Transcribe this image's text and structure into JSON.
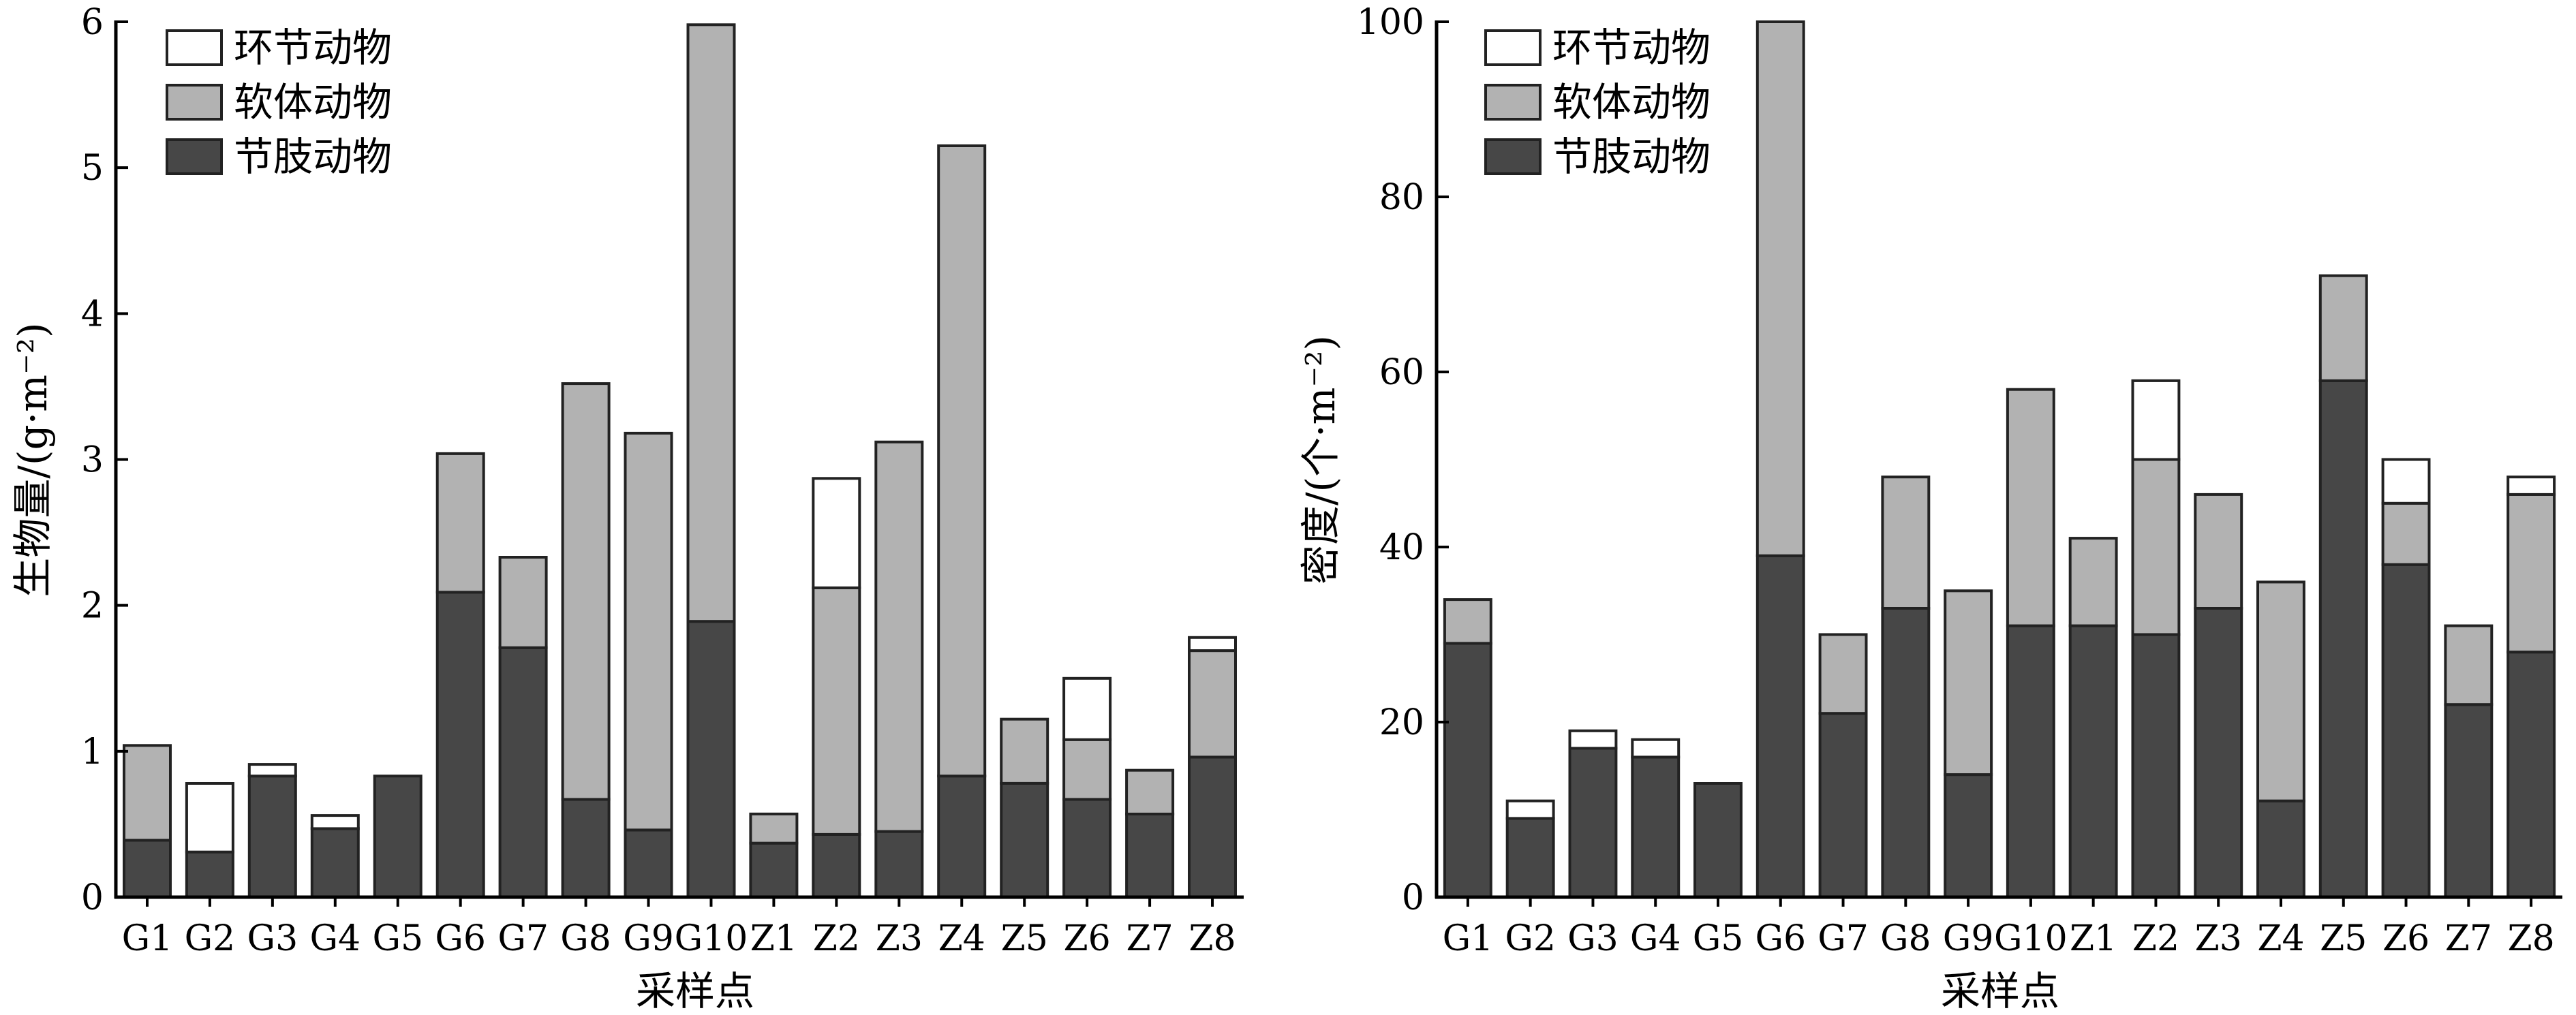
{
  "colors": {
    "annelida": "#ffffff",
    "mollusca": "#b2b2b2",
    "arthropoda": "#474747",
    "stroke": "#222222",
    "axis": "#000000"
  },
  "chart_data": [
    {
      "type": "bar",
      "stacked": true,
      "categories": [
        "G1",
        "G2",
        "G3",
        "G4",
        "G5",
        "G6",
        "G7",
        "G8",
        "G9",
        "G10",
        "Z1",
        "Z2",
        "Z3",
        "Z4",
        "Z5",
        "Z6",
        "Z7",
        "Z8"
      ],
      "series": [
        {
          "name": "节肢动物",
          "color_key": "arthropoda",
          "values": [
            0.39,
            0.31,
            0.83,
            0.47,
            0.83,
            2.09,
            1.71,
            0.67,
            0.46,
            1.89,
            0.37,
            0.43,
            0.45,
            0.83,
            0.78,
            0.67,
            0.57,
            0.96
          ]
        },
        {
          "name": "软体动物",
          "color_key": "mollusca",
          "values": [
            0.65,
            0,
            0,
            0,
            0,
            0.95,
            0.62,
            2.85,
            2.72,
            4.09,
            0.2,
            1.69,
            2.67,
            4.32,
            0.44,
            0.41,
            0.3,
            0.73
          ]
        },
        {
          "name": "环节动物",
          "color_key": "annelida",
          "values": [
            0,
            0.47,
            0.08,
            0.09,
            0,
            0,
            0,
            0,
            0,
            0,
            0,
            0.75,
            0,
            0,
            0,
            0.42,
            0,
            0.09
          ]
        }
      ],
      "legend_order": [
        "环节动物",
        "软体动物",
        "节肢动物"
      ],
      "legend_position": "top-left",
      "xlabel": "采样点",
      "ylabel": "生物量/(g·m⁻²)",
      "ylim": [
        0,
        6
      ],
      "yticks": [
        "0",
        "1",
        "2",
        "3",
        "4",
        "5",
        "6"
      ],
      "grid": false
    },
    {
      "type": "bar",
      "stacked": true,
      "categories": [
        "G1",
        "G2",
        "G3",
        "G4",
        "G5",
        "G6",
        "G7",
        "G8",
        "G9",
        "G10",
        "Z1",
        "Z2",
        "Z3",
        "Z4",
        "Z5",
        "Z6",
        "Z7",
        "Z8"
      ],
      "series": [
        {
          "name": "节肢动物",
          "color_key": "arthropoda",
          "values": [
            29,
            9,
            17,
            16,
            13,
            39,
            21,
            33,
            14,
            31,
            31,
            30,
            33,
            11,
            59,
            38,
            22,
            28
          ]
        },
        {
          "name": "软体动物",
          "color_key": "mollusca",
          "values": [
            5,
            0,
            0,
            0,
            0,
            61,
            9,
            15,
            21,
            27,
            10,
            20,
            13,
            25,
            12,
            7,
            9,
            18
          ]
        },
        {
          "name": "环节动物",
          "color_key": "annelida",
          "values": [
            0,
            2,
            2,
            2,
            0,
            0,
            0,
            0,
            0,
            0,
            0,
            9,
            0,
            0,
            0,
            5,
            0,
            2
          ]
        }
      ],
      "legend_order": [
        "环节动物",
        "软体动物",
        "节肢动物"
      ],
      "legend_position": "top-left",
      "xlabel": "采样点",
      "ylabel": "密度/(个·m⁻²)",
      "ylim": [
        0,
        100
      ],
      "yticks": [
        "0",
        "20",
        "40",
        "60",
        "80",
        "100"
      ],
      "grid": false
    }
  ]
}
